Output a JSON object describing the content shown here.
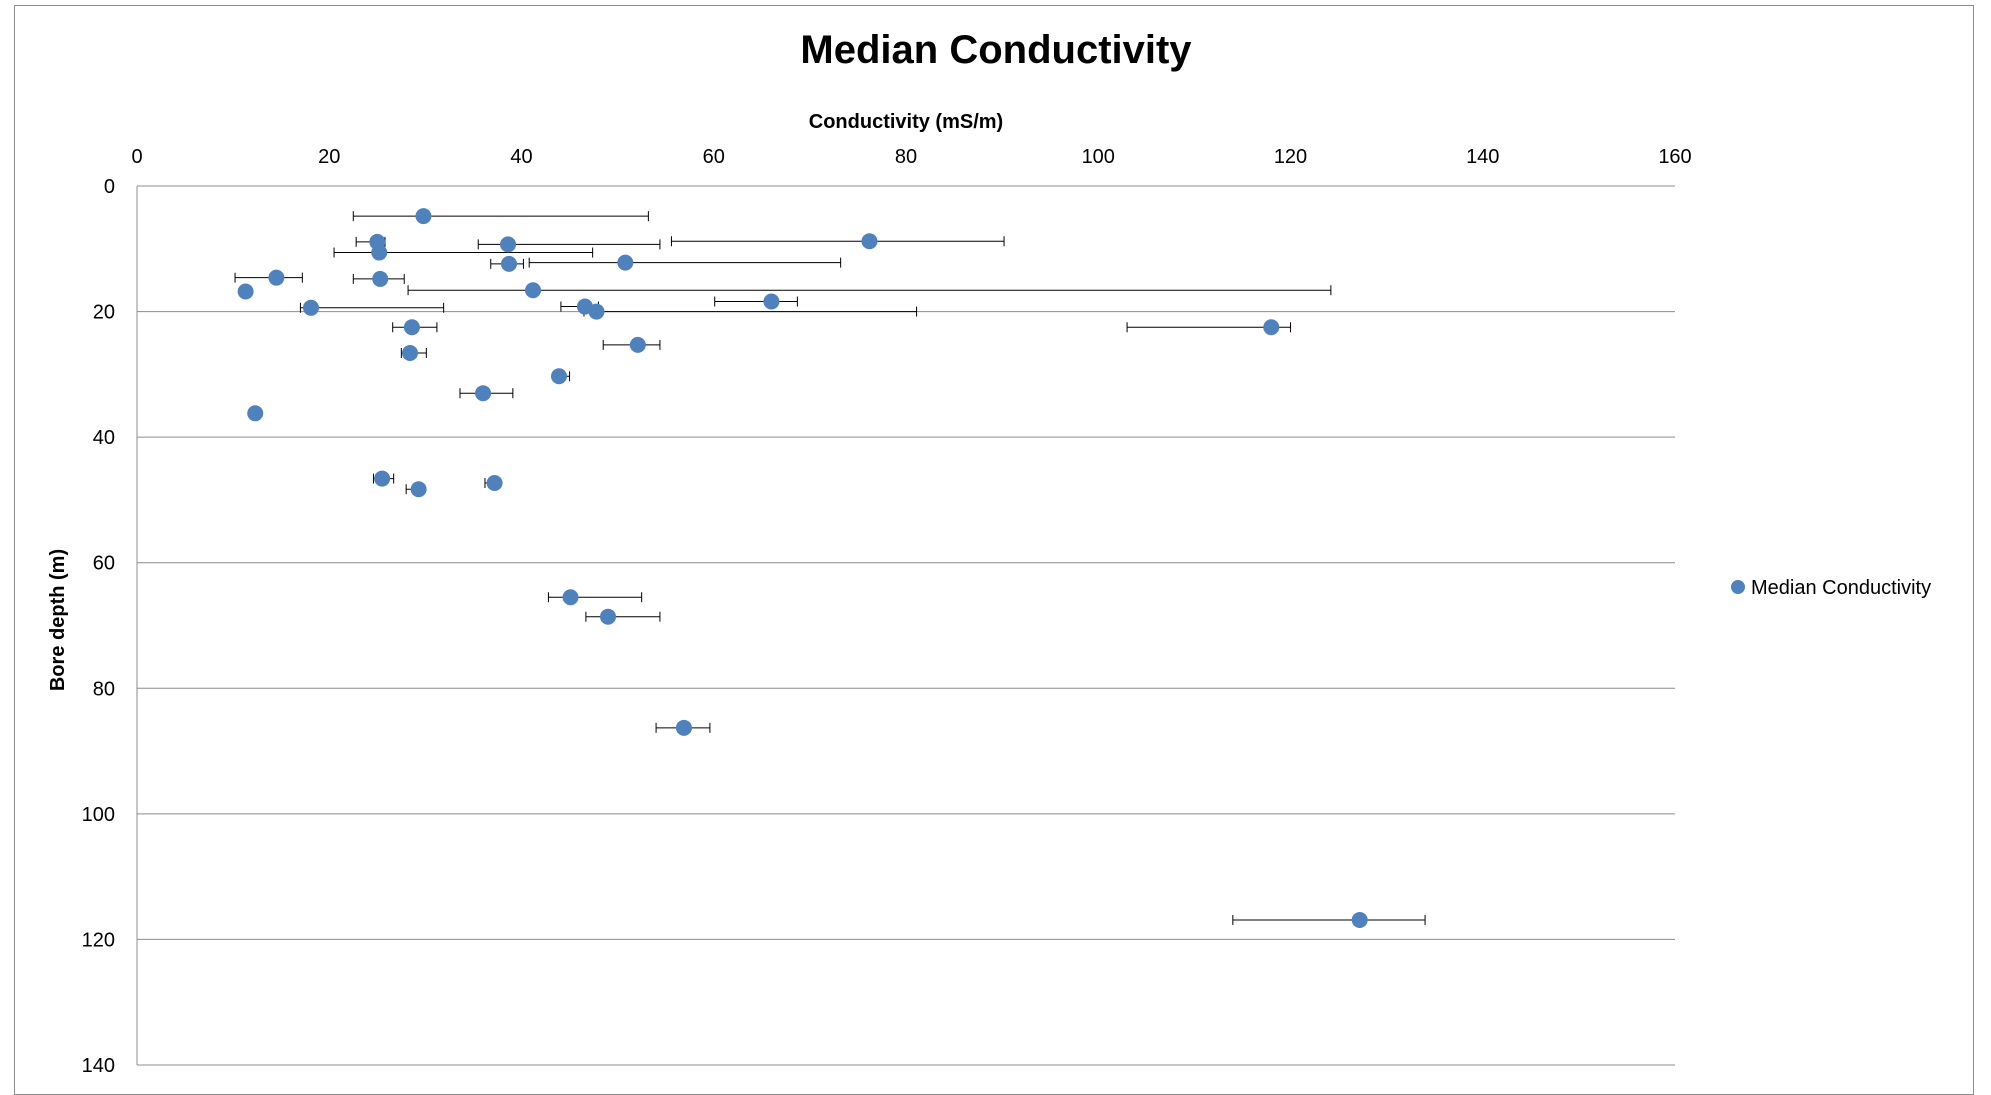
{
  "chart_data": {
    "type": "scatter",
    "title": "Median Conductivity",
    "xlabel": "Conductivity (mS/m)",
    "ylabel": "Bore depth (m)",
    "xlim": [
      0,
      160
    ],
    "ylim": [
      0,
      140
    ],
    "y_inverted": true,
    "x_axis_position": "top",
    "x_ticks": [
      "0",
      "20",
      "40",
      "60",
      "80",
      "100",
      "120",
      "140",
      "160"
    ],
    "y_ticks": [
      "0",
      "20",
      "40",
      "60",
      "80",
      "100",
      "120",
      "140"
    ],
    "grid": "horizontal major gridlines",
    "legend_position": "right",
    "series": [
      {
        "name": "Median Conductivity",
        "color": "#4f81bd",
        "points": [
          {
            "x": 29.8,
            "y": 4.8,
            "err_low": 22.5,
            "err_high": 53.2
          },
          {
            "x": 76.2,
            "y": 8.8,
            "err_low": 55.6,
            "err_high": 90.2
          },
          {
            "x": 25.0,
            "y": 8.9,
            "err_low": 22.8,
            "err_high": 25.8
          },
          {
            "x": 38.6,
            "y": 9.3,
            "err_low": 35.5,
            "err_high": 54.4
          },
          {
            "x": 25.2,
            "y": 10.6,
            "err_low": 20.5,
            "err_high": 47.4
          },
          {
            "x": 50.8,
            "y": 12.2,
            "err_low": 40.8,
            "err_high": 73.2
          },
          {
            "x": 38.7,
            "y": 12.4,
            "err_low": 36.8,
            "err_high": 40.2
          },
          {
            "x": 14.5,
            "y": 14.6,
            "err_low": 10.2,
            "err_high": 17.2
          },
          {
            "x": 25.3,
            "y": 14.8,
            "err_low": 22.5,
            "err_high": 27.8
          },
          {
            "x": 11.3,
            "y": 16.8
          },
          {
            "x": 41.2,
            "y": 16.6,
            "err_low": 28.2,
            "err_high": 124.2
          },
          {
            "x": 66.0,
            "y": 18.4,
            "err_low": 60.1,
            "err_high": 68.7
          },
          {
            "x": 46.6,
            "y": 19.2,
            "err_low": 44.1,
            "err_high": 48.0
          },
          {
            "x": 47.8,
            "y": 20.0,
            "err_low": 46.5,
            "err_high": 81.1
          },
          {
            "x": 18.1,
            "y": 19.4,
            "err_low": 17.0,
            "err_high": 31.9
          },
          {
            "x": 28.6,
            "y": 22.5,
            "err_low": 26.6,
            "err_high": 31.2
          },
          {
            "x": 118.0,
            "y": 22.5,
            "err_low": 103.0,
            "err_high": 120.0
          },
          {
            "x": 52.1,
            "y": 25.3,
            "err_low": 48.5,
            "err_high": 54.4
          },
          {
            "x": 28.4,
            "y": 26.6,
            "err_low": 27.5,
            "err_high": 30.1
          },
          {
            "x": 43.9,
            "y": 30.3,
            "err_low": 43.5,
            "err_high": 45.0
          },
          {
            "x": 36.0,
            "y": 33.0,
            "err_low": 33.6,
            "err_high": 39.1
          },
          {
            "x": 12.3,
            "y": 36.2
          },
          {
            "x": 25.5,
            "y": 46.6,
            "err_low": 24.6,
            "err_high": 26.7
          },
          {
            "x": 37.2,
            "y": 47.3,
            "err_low": 36.2,
            "err_high": 37.6
          },
          {
            "x": 29.3,
            "y": 48.3,
            "err_low": 28.0,
            "err_high": 29.8
          },
          {
            "x": 45.1,
            "y": 65.5,
            "err_low": 42.8,
            "err_high": 52.5
          },
          {
            "x": 49.0,
            "y": 68.6,
            "err_low": 46.7,
            "err_high": 54.4
          },
          {
            "x": 56.9,
            "y": 86.3,
            "err_low": 54.0,
            "err_high": 59.6
          },
          {
            "x": 127.2,
            "y": 116.9,
            "err_low": 114.0,
            "err_high": 134.0
          }
        ]
      }
    ]
  }
}
